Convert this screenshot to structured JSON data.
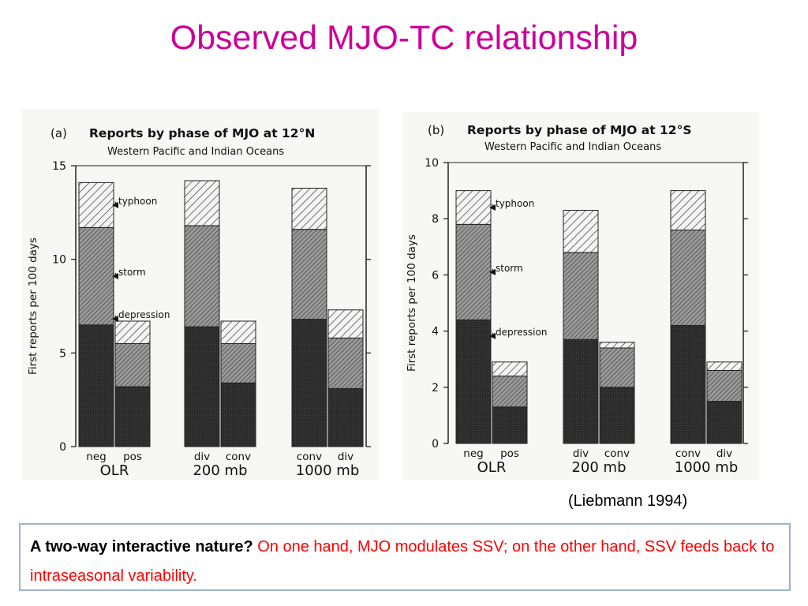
{
  "slide": {
    "title": "Observed MJO-TC relationship",
    "citation": "(Liebmann 1994)",
    "note_lead": "A two-way interactive nature?",
    "note_body": " On one hand, MJO modulates SSV; on the other hand, SSV feeds back to intraseasonal variability."
  },
  "colors": {
    "title": "#cc0099",
    "note_text": "#ff0000",
    "box_border": "#9db3cf",
    "depression": "#2b2b2b",
    "storm": "#7a7a7a"
  },
  "chart_data": [
    {
      "type": "bar",
      "stacked": true,
      "panel_label": "(a)",
      "title": "Reports by phase of MJO at 12°N",
      "subtitle": "Western Pacific and Indian Oceans",
      "ylabel": "First reports per 100 days",
      "ylim": [
        0,
        15
      ],
      "yticks": [
        0,
        5,
        10,
        15
      ],
      "categories": [
        "neg",
        "pos",
        "div",
        "conv",
        "conv",
        "div"
      ],
      "groups": [
        {
          "label": "OLR",
          "categories": [
            "neg",
            "pos"
          ]
        },
        {
          "label": "200 mb",
          "categories": [
            "div",
            "conv"
          ]
        },
        {
          "label": "1000 mb",
          "categories": [
            "conv",
            "div"
          ]
        }
      ],
      "series": [
        {
          "name": "depression",
          "values": [
            6.5,
            3.2,
            6.4,
            3.4,
            6.8,
            3.1
          ]
        },
        {
          "name": "storm",
          "values": [
            5.2,
            2.3,
            5.4,
            2.1,
            4.8,
            2.7
          ]
        },
        {
          "name": "typhoon",
          "values": [
            2.4,
            1.2,
            2.4,
            1.2,
            2.2,
            1.5
          ]
        }
      ],
      "annotations": [
        "typhoon",
        "storm",
        "depression"
      ]
    },
    {
      "type": "bar",
      "stacked": true,
      "panel_label": "(b)",
      "title": "Reports by phase of MJO at 12°S",
      "subtitle": "Western Pacific and Indian Oceans",
      "ylabel": "First reports per 100 days",
      "ylim": [
        0,
        10
      ],
      "yticks": [
        0,
        2,
        4,
        6,
        8,
        10
      ],
      "categories": [
        "neg",
        "pos",
        "div",
        "conv",
        "conv",
        "div"
      ],
      "groups": [
        {
          "label": "OLR",
          "categories": [
            "neg",
            "pos"
          ]
        },
        {
          "label": "200 mb",
          "categories": [
            "div",
            "conv"
          ]
        },
        {
          "label": "1000 mb",
          "categories": [
            "conv",
            "div"
          ]
        }
      ],
      "series": [
        {
          "name": "depression",
          "values": [
            4.4,
            1.3,
            3.7,
            2.0,
            4.2,
            1.5
          ]
        },
        {
          "name": "storm",
          "values": [
            3.4,
            1.1,
            3.1,
            1.4,
            3.4,
            1.1
          ]
        },
        {
          "name": "typhoon",
          "values": [
            1.2,
            0.5,
            1.5,
            0.2,
            1.4,
            0.3
          ]
        }
      ],
      "annotations": [
        "typhoon",
        "storm",
        "depression"
      ]
    }
  ]
}
